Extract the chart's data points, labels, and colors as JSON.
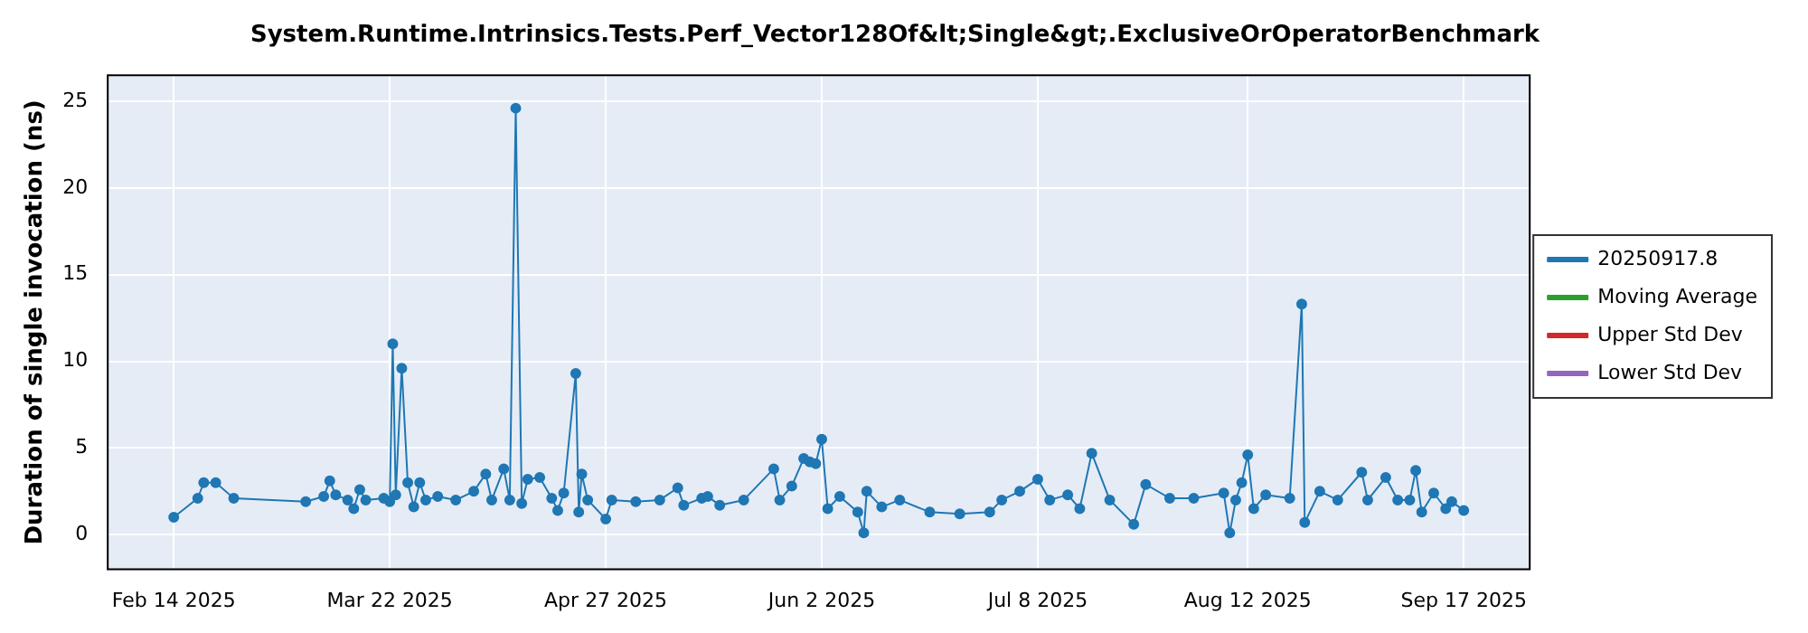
{
  "chart_data": {
    "type": "line",
    "title": "System.Runtime.Intrinsics.Tests.Perf_Vector128Of&lt;Single&gt;.ExclusiveOrOperatorBenchmark",
    "ylabel": "Duration of single invocation (ns)",
    "x": [
      "2025-02-14",
      "2025-02-18",
      "2025-02-19",
      "2025-02-21",
      "2025-02-24",
      "2025-03-08",
      "2025-03-11",
      "2025-03-12",
      "2025-03-13",
      "2025-03-15",
      "2025-03-16",
      "2025-03-17",
      "2025-03-18",
      "2025-03-21",
      "2025-03-22",
      "2025-03-22T12:00",
      "2025-03-23",
      "2025-03-24",
      "2025-03-25",
      "2025-03-26",
      "2025-03-27",
      "2025-03-28",
      "2025-03-30",
      "2025-04-02",
      "2025-04-05",
      "2025-04-07",
      "2025-04-08",
      "2025-04-10",
      "2025-04-11",
      "2025-04-12",
      "2025-04-13",
      "2025-04-14",
      "2025-04-16",
      "2025-04-18",
      "2025-04-19",
      "2025-04-20",
      "2025-04-22",
      "2025-04-22T12:00",
      "2025-04-23",
      "2025-04-24",
      "2025-04-27",
      "2025-04-28",
      "2025-05-02",
      "2025-05-06",
      "2025-05-09",
      "2025-05-10",
      "2025-05-13",
      "2025-05-14",
      "2025-05-16",
      "2025-05-20",
      "2025-05-25",
      "2025-05-26",
      "2025-05-28",
      "2025-05-30",
      "2025-05-31",
      "2025-06-01",
      "2025-06-02",
      "2025-06-03",
      "2025-06-05",
      "2025-06-08",
      "2025-06-09",
      "2025-06-09T12:00",
      "2025-06-12",
      "2025-06-15",
      "2025-06-20",
      "2025-06-25",
      "2025-06-30",
      "2025-07-02",
      "2025-07-05",
      "2025-07-08",
      "2025-07-10",
      "2025-07-13",
      "2025-07-15",
      "2025-07-17",
      "2025-07-20",
      "2025-07-24",
      "2025-07-26",
      "2025-07-30",
      "2025-08-03",
      "2025-08-08",
      "2025-08-09",
      "2025-08-10",
      "2025-08-11",
      "2025-08-12",
      "2025-08-13",
      "2025-08-15",
      "2025-08-19",
      "2025-08-21",
      "2025-08-21T12:00",
      "2025-08-24",
      "2025-08-27",
      "2025-08-31",
      "2025-09-01",
      "2025-09-04",
      "2025-09-06",
      "2025-09-08",
      "2025-09-09",
      "2025-09-10",
      "2025-09-12",
      "2025-09-14",
      "2025-09-15",
      "2025-09-17"
    ],
    "series": [
      {
        "name": "20250917.8",
        "color": "#1f77b4",
        "values": [
          1.0,
          2.1,
          3.0,
          3.0,
          2.1,
          1.9,
          2.2,
          3.1,
          2.3,
          2.0,
          1.5,
          2.6,
          2.0,
          2.1,
          1.9,
          11.0,
          2.3,
          9.6,
          3.0,
          1.6,
          3.0,
          2.0,
          2.2,
          2.0,
          2.5,
          3.5,
          2.0,
          3.8,
          2.0,
          24.6,
          1.8,
          3.2,
          3.3,
          2.1,
          1.4,
          2.4,
          9.3,
          1.3,
          3.5,
          2.0,
          0.9,
          2.0,
          1.9,
          2.0,
          2.7,
          1.7,
          2.1,
          2.2,
          1.7,
          2.0,
          3.8,
          2.0,
          2.8,
          4.4,
          4.2,
          4.1,
          5.5,
          1.5,
          2.2,
          1.3,
          0.1,
          2.5,
          1.6,
          2.0,
          1.3,
          1.2,
          1.3,
          2.0,
          2.5,
          3.2,
          2.0,
          2.3,
          1.5,
          4.7,
          2.0,
          0.6,
          2.9,
          2.1,
          2.1,
          2.4,
          0.1,
          2.0,
          3.0,
          4.6,
          1.5,
          2.3,
          2.1,
          13.3,
          0.7,
          2.5,
          2.0,
          3.6,
          2.0,
          3.3,
          2.0,
          2.0,
          3.7,
          1.3,
          2.4,
          1.5,
          1.9,
          1.4
        ]
      },
      {
        "name": "Moving Average",
        "color": "#2ca02c",
        "values": [
          null,
          null,
          null,
          null,
          null,
          null,
          null,
          null,
          null,
          null,
          null,
          null,
          null,
          null,
          null,
          null,
          null,
          null,
          null,
          null,
          null,
          null,
          null,
          null,
          null,
          null,
          null,
          null,
          null,
          null,
          null,
          null,
          null,
          null,
          null,
          null,
          null,
          null,
          null,
          null,
          null,
          null,
          null,
          null,
          null,
          null,
          null,
          null,
          null,
          null,
          null,
          null,
          null,
          null,
          null,
          null,
          null,
          null,
          null,
          null,
          null,
          null,
          null,
          null,
          null,
          null,
          null,
          null,
          null,
          null,
          null,
          null,
          null,
          null,
          null,
          null,
          null,
          null,
          null,
          null,
          null,
          null,
          null,
          null,
          null,
          null,
          null,
          null,
          null,
          null,
          null,
          null,
          null,
          null,
          null,
          null,
          null,
          null,
          null,
          null,
          null,
          null
        ]
      },
      {
        "name": "Upper Std Dev",
        "color": "#d62728",
        "values": [
          null,
          null,
          null,
          null,
          null,
          null,
          null,
          null,
          null,
          null,
          null,
          null,
          null,
          null,
          null,
          null,
          null,
          null,
          null,
          null,
          null,
          null,
          null,
          null,
          null,
          null,
          null,
          null,
          null,
          null,
          null,
          null,
          null,
          null,
          null,
          null,
          null,
          null,
          null,
          null,
          null,
          null,
          null,
          null,
          null,
          null,
          null,
          null,
          null,
          null,
          null,
          null,
          null,
          null,
          null,
          null,
          null,
          null,
          null,
          null,
          null,
          null,
          null,
          null,
          null,
          null,
          null,
          null,
          null,
          null,
          null,
          null,
          null,
          null,
          null,
          null,
          null,
          null,
          null,
          null,
          null,
          null,
          null,
          null,
          null,
          null,
          null,
          null,
          null,
          null,
          null,
          null,
          null,
          null,
          null,
          null,
          null,
          null,
          null,
          null,
          null,
          null
        ]
      },
      {
        "name": "Lower Std Dev",
        "color": "#9467bd",
        "values": [
          null,
          null,
          null,
          null,
          null,
          null,
          null,
          null,
          null,
          null,
          null,
          null,
          null,
          null,
          null,
          null,
          null,
          null,
          null,
          null,
          null,
          null,
          null,
          null,
          null,
          null,
          null,
          null,
          null,
          null,
          null,
          null,
          null,
          null,
          null,
          null,
          null,
          null,
          null,
          null,
          null,
          null,
          null,
          null,
          null,
          null,
          null,
          null,
          null,
          null,
          null,
          null,
          null,
          null,
          null,
          null,
          null,
          null,
          null,
          null,
          null,
          null,
          null,
          null,
          null,
          null,
          null,
          null,
          null,
          null,
          null,
          null,
          null,
          null,
          null,
          null,
          null,
          null,
          null,
          null,
          null,
          null,
          null,
          null,
          null,
          null,
          null,
          null,
          null,
          null,
          null,
          null,
          null,
          null,
          null,
          null,
          null,
          null,
          null,
          null,
          null,
          null
        ]
      }
    ],
    "xlim": [
      "2025-02-03",
      "2025-09-28"
    ],
    "xticks": [
      {
        "value": "2025-02-14",
        "label": "Feb 14 2025"
      },
      {
        "value": "2025-03-22",
        "label": "Mar 22 2025"
      },
      {
        "value": "2025-04-27",
        "label": "Apr 27 2025"
      },
      {
        "value": "2025-06-02",
        "label": "Jun 2 2025"
      },
      {
        "value": "2025-07-08",
        "label": "Jul 8 2025"
      },
      {
        "value": "2025-08-12",
        "label": "Aug 12 2025"
      },
      {
        "value": "2025-09-17",
        "label": "Sep 17 2025"
      }
    ],
    "ylim": [
      -2,
      26.5
    ],
    "yticks": [
      0,
      5,
      10,
      15,
      20,
      25
    ],
    "grid": true,
    "legend": "right",
    "marker": "circle",
    "line_style": "solid"
  }
}
